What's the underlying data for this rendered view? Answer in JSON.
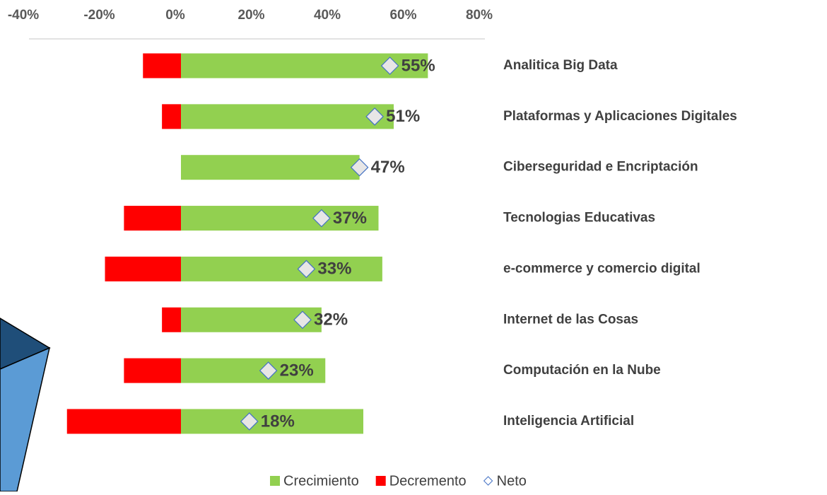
{
  "chart_data": {
    "type": "bar",
    "categories": [
      "Analitica Big Data",
      "Plataformas y Aplicaciones Digitales",
      "Ciberseguridad e Encriptación",
      "Tecnologias Educativas",
      "e-commerce y comercio digital",
      "Internet de las Cosas",
      "Computación en la Nube",
      "Inteligencia Artificial"
    ],
    "series": [
      {
        "name": "Crecimiento",
        "color": "#92d050",
        "values": [
          65,
          56,
          47,
          52,
          53,
          37,
          38,
          48
        ]
      },
      {
        "name": "Decremento",
        "color": "#ff0000",
        "values": [
          -10,
          -5,
          0,
          -15,
          -20,
          -5,
          -15,
          -30
        ]
      },
      {
        "name": "Neto",
        "color": "#4472c4",
        "values": [
          55,
          51,
          47,
          37,
          33,
          32,
          23,
          18
        ],
        "value_labels": [
          "55%",
          "51%",
          "47%",
          "37%",
          "33%",
          "32%",
          "23%",
          "18%"
        ]
      }
    ],
    "xlim": [
      -40,
      80
    ],
    "xticks": [
      {
        "value": -40,
        "label": "-40%"
      },
      {
        "value": -20,
        "label": "-20%"
      },
      {
        "value": 0,
        "label": "0%"
      },
      {
        "value": 20,
        "label": "20%"
      },
      {
        "value": 40,
        "label": "40%"
      },
      {
        "value": 60,
        "label": "60%"
      },
      {
        "value": 80,
        "label": "80%"
      }
    ],
    "legend": "bottom"
  }
}
